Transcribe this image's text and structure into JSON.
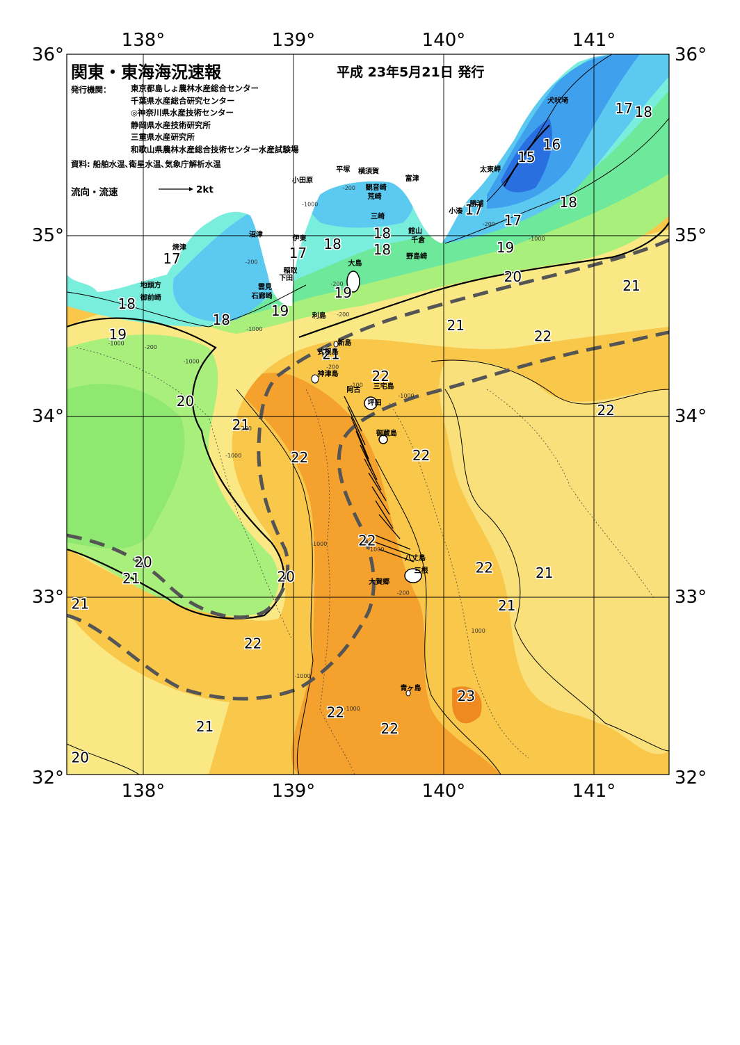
{
  "header": {
    "title": "関東・東海海況速報",
    "date": "平成 23年5月21日 発行",
    "publisher_label": "発行機関：",
    "publishers": [
      "東京都島しょ農林水産総合センター",
      "千葉県水産総合研究センター",
      "◎神奈川県水産技術センター",
      "静岡県水産技術研究所",
      "三重県水産研究所",
      "和歌山県農林水産総合技術センター水産試験場"
    ],
    "data_source": "資料: 船舶水温､衛星水温､気象庁解析水温",
    "flow_label": "流向・流速",
    "flow_unit": "2kt"
  },
  "axes": {
    "lon_labels": [
      "138°",
      "139°",
      "140°",
      "141°"
    ],
    "lat_labels": [
      "36°",
      "35°",
      "34°",
      "33°",
      "32°"
    ],
    "lon_values": [
      138,
      139,
      140,
      141
    ],
    "lat_values": [
      36,
      35,
      34,
      33,
      32
    ]
  },
  "colors": {
    "t15": "#2a6fe0",
    "t16": "#3fa0ee",
    "t17": "#5ccaf0",
    "t18": "#7aeedd",
    "t19": "#6ee89a",
    "t20": "#a8ef7c",
    "t21": "#f9e884",
    "t22": "#f9c84a",
    "t23": "#f49a2a",
    "land": "#ffffff",
    "front": "#555555"
  },
  "isotherm_labels": [
    {
      "text": "15",
      "lon": 140.55,
      "lat": 35.43
    },
    {
      "text": "16",
      "lon": 140.72,
      "lat": 35.5
    },
    {
      "text": "17",
      "lon": 141.2,
      "lat": 35.7
    },
    {
      "text": "18",
      "lon": 141.33,
      "lat": 35.68
    },
    {
      "text": "18",
      "lon": 140.83,
      "lat": 35.18
    },
    {
      "text": "17",
      "lon": 140.46,
      "lat": 35.08
    },
    {
      "text": "17",
      "lon": 140.2,
      "lat": 35.14
    },
    {
      "text": "19",
      "lon": 140.41,
      "lat": 34.93
    },
    {
      "text": "20",
      "lon": 140.46,
      "lat": 34.77
    },
    {
      "text": "21",
      "lon": 141.25,
      "lat": 34.72
    },
    {
      "text": "18",
      "lon": 139.59,
      "lat": 35.01
    },
    {
      "text": "18",
      "lon": 139.59,
      "lat": 34.92
    },
    {
      "text": "18",
      "lon": 139.26,
      "lat": 34.95
    },
    {
      "text": "17",
      "lon": 139.03,
      "lat": 34.9
    },
    {
      "text": "17",
      "lon": 138.19,
      "lat": 34.87
    },
    {
      "text": "19",
      "lon": 139.33,
      "lat": 34.68
    },
    {
      "text": "19",
      "lon": 138.91,
      "lat": 34.58
    },
    {
      "text": "18",
      "lon": 138.52,
      "lat": 34.53
    },
    {
      "text": "18",
      "lon": 137.89,
      "lat": 34.62
    },
    {
      "text": "19",
      "lon": 137.83,
      "lat": 34.45
    },
    {
      "text": "21",
      "lon": 140.08,
      "lat": 34.5
    },
    {
      "text": "22",
      "lon": 140.66,
      "lat": 34.44
    },
    {
      "text": "21",
      "lon": 139.25,
      "lat": 34.34
    },
    {
      "text": "22",
      "lon": 139.58,
      "lat": 34.22
    },
    {
      "text": "20",
      "lon": 138.28,
      "lat": 34.08
    },
    {
      "text": "21",
      "lon": 138.65,
      "lat": 33.95
    },
    {
      "text": "22",
      "lon": 141.08,
      "lat": 34.03
    },
    {
      "text": "22",
      "lon": 139.04,
      "lat": 33.77
    },
    {
      "text": "22",
      "lon": 139.85,
      "lat": 33.78
    },
    {
      "text": "22",
      "lon": 139.49,
      "lat": 33.31
    },
    {
      "text": "20",
      "lon": 138.0,
      "lat": 33.19
    },
    {
      "text": "21",
      "lon": 137.92,
      "lat": 33.1
    },
    {
      "text": "20",
      "lon": 138.95,
      "lat": 33.11
    },
    {
      "text": "22",
      "lon": 140.27,
      "lat": 33.16
    },
    {
      "text": "21",
      "lon": 140.67,
      "lat": 33.13
    },
    {
      "text": "21",
      "lon": 137.58,
      "lat": 32.96
    },
    {
      "text": "21",
      "lon": 140.42,
      "lat": 32.95
    },
    {
      "text": "22",
      "lon": 138.73,
      "lat": 32.74
    },
    {
      "text": "23",
      "lon": 140.15,
      "lat": 32.45
    },
    {
      "text": "22",
      "lon": 139.28,
      "lat": 32.36
    },
    {
      "text": "22",
      "lon": 139.64,
      "lat": 32.27
    },
    {
      "text": "21",
      "lon": 138.41,
      "lat": 32.28
    },
    {
      "text": "20",
      "lon": 137.58,
      "lat": 32.11
    }
  ],
  "places": [
    {
      "text": "犬吠埼",
      "lon": 140.76,
      "lat": 35.73
    },
    {
      "text": "太東岬",
      "lon": 140.31,
      "lat": 35.35
    },
    {
      "text": "勝浦",
      "lon": 140.22,
      "lat": 35.16
    },
    {
      "text": "小湊",
      "lon": 140.08,
      "lat": 35.12
    },
    {
      "text": "富津",
      "lon": 139.79,
      "lat": 35.3
    },
    {
      "text": "館山",
      "lon": 139.81,
      "lat": 35.01
    },
    {
      "text": "千倉",
      "lon": 139.83,
      "lat": 34.96
    },
    {
      "text": "野島崎",
      "lon": 139.82,
      "lat": 34.87
    },
    {
      "text": "横須賀",
      "lon": 139.5,
      "lat": 35.34
    },
    {
      "text": "観音崎",
      "lon": 139.55,
      "lat": 35.25
    },
    {
      "text": "荒崎",
      "lon": 139.54,
      "lat": 35.2
    },
    {
      "text": "三崎",
      "lon": 139.56,
      "lat": 35.09
    },
    {
      "text": "平塚",
      "lon": 139.33,
      "lat": 35.35
    },
    {
      "text": "小田原",
      "lon": 139.06,
      "lat": 35.29
    },
    {
      "text": "沼津",
      "lon": 138.75,
      "lat": 34.99
    },
    {
      "text": "伊東",
      "lon": 139.04,
      "lat": 34.97
    },
    {
      "text": "大島",
      "lon": 139.41,
      "lat": 34.83
    },
    {
      "text": "稲取",
      "lon": 138.98,
      "lat": 34.79
    },
    {
      "text": "下田",
      "lon": 138.95,
      "lat": 34.75
    },
    {
      "text": "雲見",
      "lon": 138.81,
      "lat": 34.7
    },
    {
      "text": "石廊崎",
      "lon": 138.79,
      "lat": 34.65
    },
    {
      "text": "焼津",
      "lon": 138.24,
      "lat": 34.92
    },
    {
      "text": "地頭方",
      "lon": 138.05,
      "lat": 34.71
    },
    {
      "text": "御前崎",
      "lon": 138.05,
      "lat": 34.64
    },
    {
      "text": "利島",
      "lon": 139.17,
      "lat": 34.54
    },
    {
      "text": "新島",
      "lon": 139.34,
      "lat": 34.39
    },
    {
      "text": "式根島",
      "lon": 139.23,
      "lat": 34.34
    },
    {
      "text": "神津島",
      "lon": 139.23,
      "lat": 34.22
    },
    {
      "text": "阿古",
      "lon": 139.4,
      "lat": 34.13
    },
    {
      "text": "三宅島",
      "lon": 139.6,
      "lat": 34.15
    },
    {
      "text": "坪田",
      "lon": 139.54,
      "lat": 34.06
    },
    {
      "text": "御蔵島",
      "lon": 139.62,
      "lat": 33.89
    },
    {
      "text": "八丈島",
      "lon": 139.81,
      "lat": 33.2
    },
    {
      "text": "三根",
      "lon": 139.85,
      "lat": 33.13
    },
    {
      "text": "大賀郷",
      "lon": 139.57,
      "lat": 33.07
    },
    {
      "text": "青ヶ島",
      "lon": 139.78,
      "lat": 32.48
    }
  ],
  "depth_labels": [
    {
      "text": "-200",
      "lon": 139.37,
      "lat": 35.25
    },
    {
      "text": "-1000",
      "lon": 139.11,
      "lat": 35.16
    },
    {
      "text": "-200",
      "lon": 140.3,
      "lat": 35.05
    },
    {
      "text": "-1000",
      "lon": 140.62,
      "lat": 34.97
    },
    {
      "text": "-200",
      "lon": 138.72,
      "lat": 34.84
    },
    {
      "text": "-200",
      "lon": 139.29,
      "lat": 34.72
    },
    {
      "text": "-1000",
      "lon": 138.74,
      "lat": 34.47
    },
    {
      "text": "-200",
      "lon": 139.33,
      "lat": 34.55
    },
    {
      "text": "-1000",
      "lon": 137.82,
      "lat": 34.39
    },
    {
      "text": "-200",
      "lon": 138.05,
      "lat": 34.37
    },
    {
      "text": "-1000",
      "lon": 138.32,
      "lat": 34.29
    },
    {
      "text": "-200",
      "lon": 139.26,
      "lat": 34.26
    },
    {
      "text": "-100",
      "lon": 139.42,
      "lat": 34.16
    },
    {
      "text": "-1000",
      "lon": 139.75,
      "lat": 34.1
    },
    {
      "text": "-200",
      "lon": 138.68,
      "lat": 33.92
    },
    {
      "text": "-1000",
      "lon": 138.6,
      "lat": 33.77
    },
    {
      "text": "-1000",
      "lon": 139.17,
      "lat": 33.28
    },
    {
      "text": "-1000",
      "lon": 139.55,
      "lat": 33.25
    },
    {
      "text": "-200",
      "lon": 139.73,
      "lat": 33.01
    },
    {
      "text": "1000",
      "lon": 140.23,
      "lat": 32.8
    },
    {
      "text": "-1000",
      "lon": 139.06,
      "lat": 32.55
    },
    {
      "text": "-1000",
      "lon": 139.39,
      "lat": 32.37
    }
  ]
}
